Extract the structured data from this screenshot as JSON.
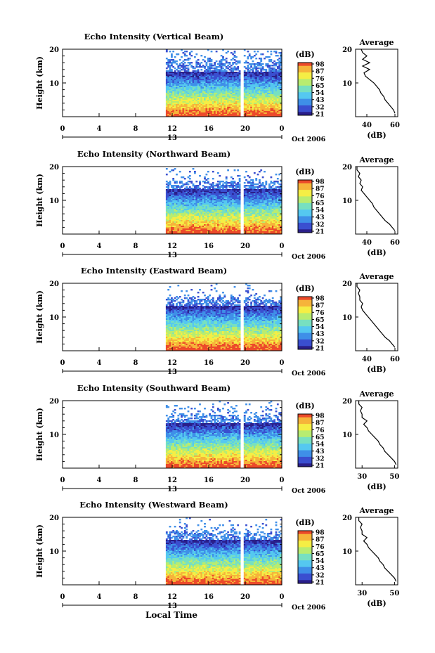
{
  "chart_data": [
    {
      "type": "heatmap",
      "title": "Echo Intensity (Vertical Beam)",
      "ylabel": "Height (km)",
      "ylim": [
        0,
        20
      ],
      "yticks": [
        "20",
        "10"
      ],
      "xticks": [
        "0",
        "4",
        "8",
        "12",
        "16",
        "20",
        "0"
      ],
      "date_label": "13",
      "data_start_hour": 11.3,
      "gap_hour": 19.6,
      "colorbar": {
        "title": "(dB)",
        "ticks": [
          "98",
          "87",
          "76",
          "65",
          "54",
          "43",
          "32",
          "21"
        ],
        "range": [
          21,
          98
        ]
      },
      "average": {
        "title": "Average",
        "xlabel": "(dB)",
        "xticks": [
          "40",
          "60"
        ],
        "xlim": [
          32,
          62
        ],
        "heights": [
          1,
          2,
          3,
          4,
          5,
          6,
          7,
          8,
          9,
          10,
          11,
          12,
          13,
          14,
          15,
          16,
          17,
          18,
          19,
          20
        ],
        "values": [
          60,
          59,
          57,
          55,
          53,
          52,
          50,
          49,
          47,
          45,
          42,
          39,
          38,
          42,
          37,
          42,
          37,
          40,
          37,
          36
        ]
      }
    },
    {
      "type": "heatmap",
      "title": "Echo Intensity (Northward Beam)",
      "ylabel": "Height (km)",
      "ylim": [
        0,
        20
      ],
      "yticks": [
        "20",
        "10"
      ],
      "xticks": [
        "0",
        "4",
        "8",
        "12",
        "16",
        "20",
        "0"
      ],
      "date_label": "13",
      "data_start_hour": 11.3,
      "gap_hour": 19.6,
      "colorbar": {
        "title": "(dB)",
        "ticks": [
          "98",
          "87",
          "76",
          "65",
          "54",
          "43",
          "32",
          "21"
        ],
        "range": [
          21,
          98
        ]
      },
      "average": {
        "title": "Average",
        "xlabel": "(dB)",
        "xticks": [
          "40",
          "60"
        ],
        "xlim": [
          32,
          62
        ],
        "heights": [
          1,
          2,
          3,
          4,
          5,
          6,
          7,
          8,
          9,
          10,
          11,
          12,
          13,
          14,
          15,
          16,
          17,
          18,
          19,
          20
        ],
        "values": [
          60,
          58,
          56,
          53,
          51,
          49,
          47,
          45,
          44,
          42,
          40,
          38,
          36,
          37,
          35,
          36,
          34,
          35,
          33,
          33
        ]
      }
    },
    {
      "type": "heatmap",
      "title": "Echo Intensity (Eastward Beam)",
      "ylabel": "Height (km)",
      "ylim": [
        0,
        20
      ],
      "yticks": [
        "20",
        "10"
      ],
      "xticks": [
        "0",
        "4",
        "8",
        "12",
        "16",
        "20",
        "0"
      ],
      "date_label": "13",
      "data_start_hour": 11.3,
      "gap_hour": 19.6,
      "colorbar": {
        "title": "(dB)",
        "ticks": [
          "98",
          "87",
          "76",
          "65",
          "54",
          "43",
          "32",
          "21"
        ],
        "range": [
          21,
          98
        ]
      },
      "average": {
        "title": "Average",
        "xlabel": "(dB)",
        "xticks": [
          "40",
          "60"
        ],
        "xlim": [
          32,
          62
        ],
        "heights": [
          1,
          2,
          3,
          4,
          5,
          6,
          7,
          8,
          9,
          10,
          11,
          12,
          13,
          14,
          15,
          16,
          17,
          18,
          19,
          20
        ],
        "values": [
          60,
          58,
          56,
          53,
          51,
          49,
          47,
          45,
          43,
          41,
          39,
          37,
          36,
          37,
          35,
          35,
          34,
          35,
          33,
          33
        ]
      }
    },
    {
      "type": "heatmap",
      "title": "Echo Intensity (Southward Beam)",
      "ylabel": "Height (km)",
      "ylim": [
        0,
        20
      ],
      "yticks": [
        "20",
        "10"
      ],
      "xticks": [
        "0",
        "4",
        "8",
        "12",
        "16",
        "20",
        "0"
      ],
      "date_label": "13",
      "data_start_hour": 11.3,
      "gap_hour": 19.6,
      "colorbar": {
        "title": "(dB)",
        "ticks": [
          "98",
          "87",
          "76",
          "65",
          "54",
          "43",
          "32",
          "21"
        ],
        "range": [
          21,
          98
        ]
      },
      "average": {
        "title": "Average",
        "xlabel": "(dB)",
        "xticks": [
          "30",
          "50"
        ],
        "xlim": [
          26,
          52
        ],
        "heights": [
          1,
          2,
          3,
          4,
          5,
          6,
          7,
          8,
          9,
          10,
          11,
          12,
          13,
          14,
          15,
          16,
          17,
          18,
          19,
          20
        ],
        "values": [
          51,
          50,
          48,
          46,
          44,
          43,
          41,
          40,
          38,
          36,
          34,
          33,
          31,
          33,
          30,
          30,
          29,
          30,
          28,
          28
        ]
      }
    },
    {
      "type": "heatmap",
      "title": "Echo Intensity (Westward Beam)",
      "ylabel": "Height (km)",
      "ylim": [
        0,
        20
      ],
      "yticks": [
        "20",
        "10"
      ],
      "xticks": [
        "0",
        "4",
        "8",
        "12",
        "16",
        "20",
        "0"
      ],
      "date_label": "13",
      "data_start_hour": 11.3,
      "gap_hour": 19.6,
      "colorbar": {
        "title": "(dB)",
        "ticks": [
          "98",
          "87",
          "76",
          "65",
          "54",
          "43",
          "32",
          "21"
        ],
        "range": [
          21,
          98
        ]
      },
      "average": {
        "title": "Average",
        "xlabel": "(dB)",
        "xticks": [
          "30",
          "50"
        ],
        "xlim": [
          26,
          52
        ],
        "heights": [
          1,
          2,
          3,
          4,
          5,
          6,
          7,
          8,
          9,
          10,
          11,
          12,
          13,
          14,
          15,
          16,
          17,
          18,
          19,
          20
        ],
        "values": [
          51,
          50,
          48,
          46,
          44,
          43,
          41,
          40,
          38,
          36,
          34,
          33,
          31,
          33,
          30,
          30,
          29,
          30,
          28,
          28
        ]
      }
    }
  ],
  "date_caption": "Oct 2006",
  "x_axis_title": "Local Time",
  "colors": {
    "colormap": [
      "#2a1f8a",
      "#3a4fd0",
      "#3f8fe8",
      "#55c8f0",
      "#77e0c0",
      "#b8ec70",
      "#f5ee45",
      "#f6b43a",
      "#ec4a2a"
    ]
  }
}
